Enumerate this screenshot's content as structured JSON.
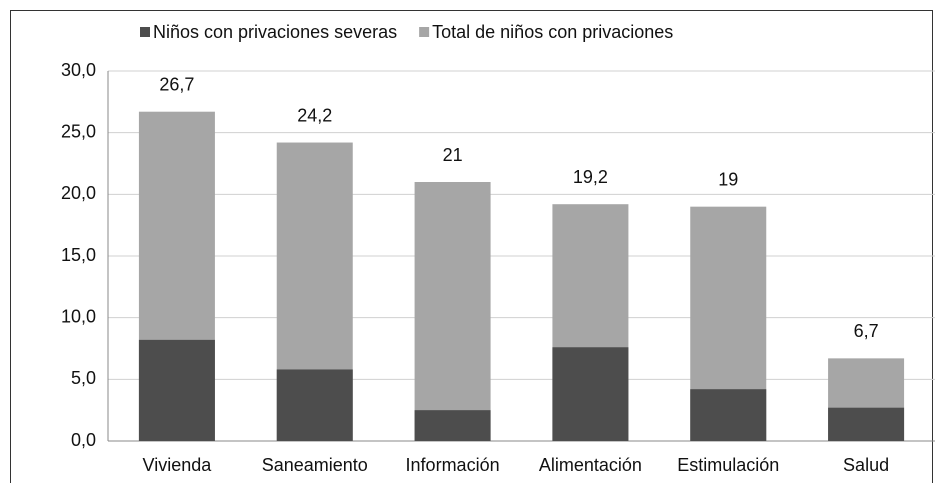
{
  "chart_data": {
    "type": "bar",
    "overlap": true,
    "categories": [
      "Vivienda",
      "Saneamiento",
      "Información",
      "Alimentación",
      "Estimulación",
      "Salud"
    ],
    "series": [
      {
        "name": "Niños con privaciones severas",
        "color": "#4d4d4d",
        "values": [
          8.2,
          5.8,
          2.5,
          7.6,
          4.2,
          2.7
        ]
      },
      {
        "name": "Total de niños con privaciones",
        "color": "#a6a6a6",
        "values": [
          26.7,
          24.2,
          21,
          19.2,
          19,
          6.7
        ],
        "value_labels": [
          "26,7",
          "24,2",
          "21",
          "19,2",
          "19",
          "6,7"
        ]
      }
    ],
    "ylim": [
      0,
      30
    ],
    "yticks": [
      {
        "value": 0,
        "label": "0,0"
      },
      {
        "value": 5,
        "label": "5,0"
      },
      {
        "value": 10,
        "label": "10,0"
      },
      {
        "value": 15,
        "label": "15,0"
      },
      {
        "value": 20,
        "label": "20,0"
      },
      {
        "value": 25,
        "label": "25,0"
      },
      {
        "value": 30,
        "label": "30,0"
      }
    ],
    "grid": true,
    "legend": "top"
  }
}
